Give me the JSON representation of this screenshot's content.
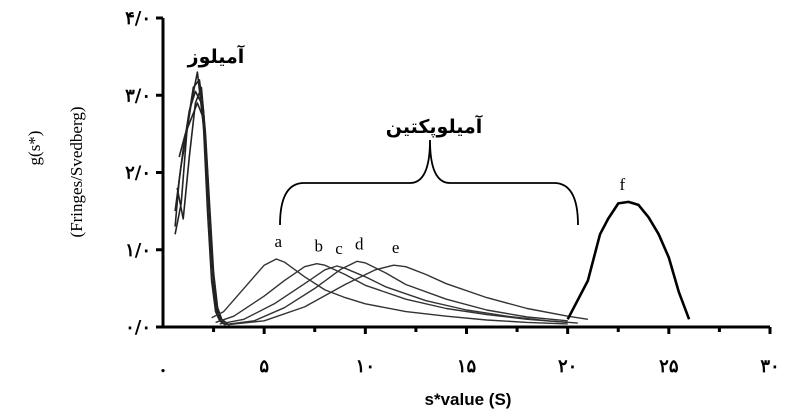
{
  "chart_data": {
    "type": "line",
    "title": "",
    "xlabel": "s*value (S)",
    "ylabel_lines": [
      "g(s*)",
      "(Fringes/Svedberg)"
    ],
    "xlim": [
      0,
      30
    ],
    "ylim": [
      0,
      4
    ],
    "x_ticks": [
      {
        "value": 0,
        "label": "."
      },
      {
        "value": 5,
        "label": "۵"
      },
      {
        "value": 10,
        "label": "۱۰"
      },
      {
        "value": 15,
        "label": "۱۵"
      },
      {
        "value": 20,
        "label": "۲۰"
      },
      {
        "value": 25,
        "label": "۲۵"
      },
      {
        "value": 30,
        "label": "۳۰"
      }
    ],
    "y_ticks": [
      {
        "value": 0,
        "label": "۰/۰"
      },
      {
        "value": 1,
        "label": "۱/۰"
      },
      {
        "value": 2,
        "label": "۲/۰"
      },
      {
        "value": 3,
        "label": "۳/۰"
      },
      {
        "value": 4,
        "label": "۴/۰"
      }
    ],
    "annotations": {
      "amylose": "آمیلوز",
      "amylopectin": "آمیلوپکتین"
    },
    "series": [
      {
        "name": "a",
        "x": [
          2.4,
          3,
          4,
          5,
          5.6,
          6,
          7,
          8,
          9,
          10,
          12,
          14,
          16,
          18,
          20
        ],
        "y": [
          0.12,
          0.2,
          0.5,
          0.8,
          0.88,
          0.84,
          0.65,
          0.48,
          0.38,
          0.3,
          0.2,
          0.14,
          0.09,
          0.06,
          0.04
        ]
      },
      {
        "name": "b",
        "x": [
          2.6,
          3.5,
          5,
          6,
          7,
          7.6,
          8,
          9,
          10,
          12,
          14,
          16,
          18,
          20
        ],
        "y": [
          0.06,
          0.14,
          0.4,
          0.6,
          0.78,
          0.82,
          0.8,
          0.68,
          0.54,
          0.36,
          0.24,
          0.16,
          0.1,
          0.06
        ]
      },
      {
        "name": "c",
        "x": [
          2.8,
          4,
          5.5,
          7,
          8,
          8.6,
          9,
          10,
          11,
          13,
          15,
          17,
          19,
          20.5
        ],
        "y": [
          0.04,
          0.1,
          0.3,
          0.56,
          0.74,
          0.79,
          0.76,
          0.65,
          0.52,
          0.34,
          0.22,
          0.14,
          0.08,
          0.05
        ]
      },
      {
        "name": "d",
        "x": [
          3,
          4.5,
          6,
          7.5,
          8.8,
          9.6,
          10,
          11,
          12,
          14,
          16,
          18,
          20
        ],
        "y": [
          0.03,
          0.08,
          0.25,
          0.5,
          0.75,
          0.85,
          0.83,
          0.7,
          0.55,
          0.36,
          0.22,
          0.13,
          0.08
        ]
      },
      {
        "name": "e",
        "x": [
          3.2,
          5,
          7,
          9,
          10.5,
          11.4,
          12,
          13,
          14,
          16,
          18,
          20,
          21
        ],
        "y": [
          0.03,
          0.08,
          0.26,
          0.55,
          0.74,
          0.8,
          0.78,
          0.68,
          0.56,
          0.38,
          0.24,
          0.14,
          0.1
        ]
      },
      {
        "name": "f",
        "x": [
          20,
          21,
          21.6,
          22,
          22.5,
          23,
          23.5,
          24,
          24.5,
          25,
          25.5,
          26
        ],
        "y": [
          0.1,
          0.6,
          1.2,
          1.4,
          1.6,
          1.62,
          1.58,
          1.42,
          1.2,
          0.9,
          0.45,
          0.1
        ]
      }
    ],
    "amylose_traces": [
      {
        "x": [
          0.6,
          0.8,
          1,
          1.3,
          1.6,
          1.9,
          2.1,
          2.3,
          2.5,
          2.7,
          2.9,
          3.1
        ],
        "y": [
          1.3,
          1.9,
          2.3,
          2.8,
          3.05,
          2.9,
          2.3,
          1.4,
          0.5,
          0.15,
          0.06,
          0.03
        ]
      },
      {
        "x": [
          0.6,
          0.9,
          1.2,
          1.5,
          1.8,
          2.0,
          2.2,
          2.4,
          2.6,
          2.8,
          3.0,
          3.3
        ],
        "y": [
          1.2,
          1.6,
          2.6,
          3.1,
          3.2,
          2.8,
          2.0,
          1.0,
          0.3,
          0.1,
          0.05,
          0.03
        ]
      },
      {
        "x": [
          0.6,
          0.9,
          1.1,
          1.4,
          1.7,
          2.0,
          2.2,
          2.4,
          2.6,
          2.8,
          3.0
        ],
        "y": [
          1.5,
          2.1,
          2.4,
          2.9,
          3.3,
          2.6,
          1.5,
          0.6,
          0.2,
          0.08,
          0.04
        ]
      },
      {
        "x": [
          0.7,
          1.0,
          1.3,
          1.6,
          1.9,
          2.1,
          2.3,
          2.5,
          2.7,
          2.9,
          3.2
        ],
        "y": [
          1.8,
          1.4,
          2.2,
          2.9,
          3.1,
          2.5,
          1.6,
          0.7,
          0.25,
          0.1,
          0.04
        ]
      },
      {
        "x": [
          0.8,
          1.1,
          1.4,
          1.7,
          2.0,
          2.2,
          2.4,
          2.6,
          2.8,
          3.0
        ],
        "y": [
          2.2,
          2.5,
          2.7,
          2.9,
          2.7,
          1.9,
          0.9,
          0.35,
          0.12,
          0.05
        ]
      }
    ],
    "grid": false,
    "legend": "none"
  }
}
